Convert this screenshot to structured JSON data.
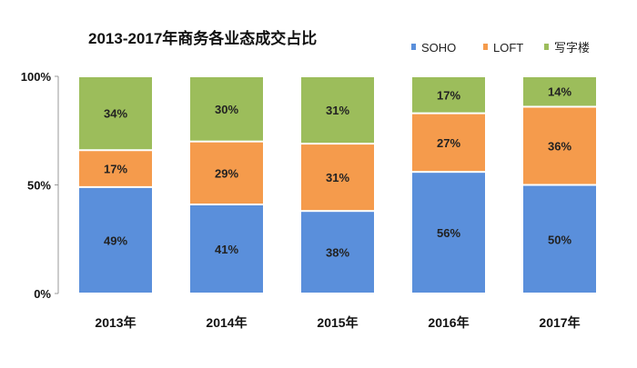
{
  "chart_data": {
    "type": "bar",
    "stacked": true,
    "title": "2013-2017年商务各业态成交占比",
    "categories": [
      "2013年",
      "2014年",
      "2015年",
      "2016年",
      "2017年"
    ],
    "series": [
      {
        "name": "SOHO",
        "color": "#5A8FDB",
        "values": [
          49,
          41,
          38,
          56,
          50
        ]
      },
      {
        "name": "LOFT",
        "color": "#F59B4C",
        "values": [
          17,
          29,
          31,
          27,
          36
        ]
      },
      {
        "name": "写字楼",
        "color": "#9CBD5B",
        "values": [
          34,
          30,
          31,
          17,
          14
        ]
      }
    ],
    "yticks": [
      "0%",
      "50%",
      "100%"
    ],
    "ylim": [
      0,
      100
    ],
    "legend": "top-right",
    "grid": false
  }
}
